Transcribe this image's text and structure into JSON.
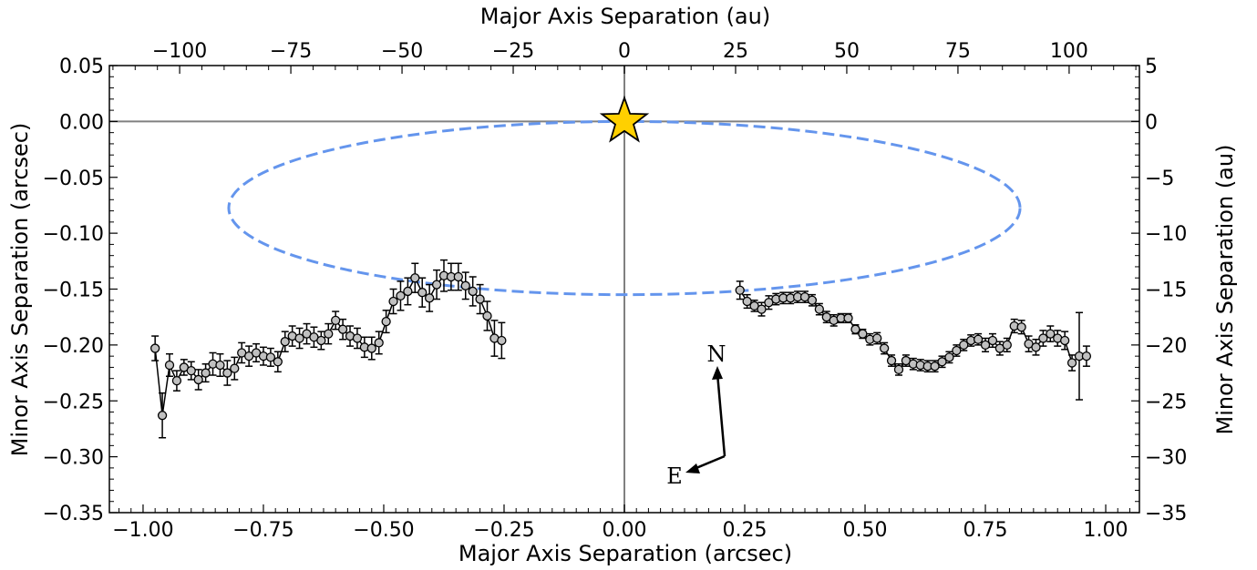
{
  "chart_data": {
    "type": "scatter",
    "title": "",
    "xlabel": "Major Axis Separation (arcsec)",
    "ylabel": "Minor Axis Separation (arcsec)",
    "x2label": "Major Axis Separation (au)",
    "y2label": "Minor Axis Separation (au)",
    "xlim": [
      -1.07,
      1.07
    ],
    "ylim": [
      -0.35,
      0.05
    ],
    "x2lim": [
      -115.8,
      115.8
    ],
    "y2lim": [
      -35.0,
      5.0
    ],
    "x_ticks": [
      -1.0,
      -0.75,
      -0.5,
      -0.25,
      0.0,
      0.25,
      0.5,
      0.75,
      1.0
    ],
    "x_tick_labels": [
      "−1.00",
      "−0.75",
      "−0.50",
      "−0.25",
      "0.00",
      "0.25",
      "0.50",
      "0.75",
      "1.00"
    ],
    "y_ticks": [
      0.05,
      0.0,
      -0.05,
      -0.1,
      -0.15,
      -0.2,
      -0.25,
      -0.3,
      -0.35
    ],
    "y_tick_labels": [
      "0.05",
      "0.00",
      "−0.05",
      "−0.10",
      "−0.15",
      "−0.20",
      "−0.25",
      "−0.30",
      "−0.35"
    ],
    "x2_ticks": [
      -100,
      -75,
      -50,
      -25,
      0,
      25,
      50,
      75,
      100
    ],
    "x2_tick_labels": [
      "−100",
      "−75",
      "−50",
      "−25",
      "0",
      "25",
      "50",
      "75",
      "100"
    ],
    "y2_ticks": [
      5,
      0,
      -5,
      -10,
      -15,
      -20,
      -25,
      -30,
      -35
    ],
    "y2_tick_labels": [
      "5",
      "0",
      "−5",
      "−10",
      "−15",
      "−20",
      "−25",
      "−30",
      "−35"
    ],
    "star": {
      "x": 0.0,
      "y": 0.0,
      "color": "#FFD000"
    },
    "ellipse": {
      "cx": 0.0,
      "cy": -0.0775,
      "rx": 0.822,
      "ry": 0.0775,
      "color": "#6495ED",
      "style": "dashed"
    },
    "reference_lines": {
      "x": 0.0,
      "y": 0.0,
      "color": "#808080"
    },
    "compass": {
      "north_label": "N",
      "east_label": "E"
    },
    "marker_color": "#C0C0C0",
    "series": [
      {
        "x": [
          -0.975,
          -0.96,
          -0.945,
          -0.93,
          -0.915,
          -0.9,
          -0.885,
          -0.87,
          -0.855,
          -0.84,
          -0.825,
          -0.81,
          -0.795,
          -0.78,
          -0.765,
          -0.75,
          -0.735,
          -0.72,
          -0.705,
          -0.69,
          -0.675,
          -0.66,
          -0.645,
          -0.63,
          -0.615,
          -0.6,
          -0.585,
          -0.57,
          -0.555,
          -0.54,
          -0.525,
          -0.51,
          -0.495,
          -0.48,
          -0.465,
          -0.45,
          -0.435,
          -0.42,
          -0.405,
          -0.39,
          -0.375,
          -0.36,
          -0.345,
          -0.33,
          -0.315,
          -0.3,
          -0.285,
          -0.27,
          -0.255
        ],
        "y": [
          -0.203,
          -0.263,
          -0.218,
          -0.232,
          -0.22,
          -0.223,
          -0.231,
          -0.225,
          -0.217,
          -0.218,
          -0.225,
          -0.221,
          -0.207,
          -0.21,
          -0.207,
          -0.21,
          -0.211,
          -0.215,
          -0.197,
          -0.192,
          -0.194,
          -0.19,
          -0.193,
          -0.196,
          -0.19,
          -0.178,
          -0.186,
          -0.192,
          -0.194,
          -0.202,
          -0.203,
          -0.198,
          -0.179,
          -0.161,
          -0.156,
          -0.152,
          -0.14,
          -0.153,
          -0.158,
          -0.146,
          -0.138,
          -0.139,
          -0.139,
          -0.147,
          -0.152,
          -0.159,
          -0.174,
          -0.194,
          -0.196
        ],
        "err": [
          0.011,
          0.02,
          0.01,
          0.009,
          0.007,
          0.008,
          0.009,
          0.008,
          0.01,
          0.01,
          0.011,
          0.01,
          0.009,
          0.009,
          0.008,
          0.008,
          0.008,
          0.009,
          0.009,
          0.009,
          0.009,
          0.009,
          0.009,
          0.008,
          0.009,
          0.008,
          0.009,
          0.009,
          0.009,
          0.009,
          0.01,
          0.01,
          0.01,
          0.011,
          0.013,
          0.012,
          0.013,
          0.013,
          0.012,
          0.013,
          0.014,
          0.012,
          0.012,
          0.012,
          0.013,
          0.013,
          0.013,
          0.016,
          0.016
        ]
      },
      {
        "x": [
          0.24,
          0.255,
          0.27,
          0.285,
          0.3,
          0.315,
          0.33,
          0.345,
          0.36,
          0.375,
          0.39,
          0.405,
          0.42,
          0.435,
          0.45,
          0.465,
          0.48,
          0.495,
          0.51,
          0.525,
          0.54,
          0.555,
          0.57,
          0.585,
          0.6,
          0.615,
          0.63,
          0.645,
          0.66,
          0.675,
          0.69,
          0.705,
          0.72,
          0.735,
          0.75,
          0.765,
          0.78,
          0.795,
          0.81,
          0.825,
          0.84,
          0.855,
          0.87,
          0.885,
          0.9,
          0.915,
          0.93,
          0.945,
          0.96
        ],
        "y": [
          -0.151,
          -0.161,
          -0.165,
          -0.168,
          -0.162,
          -0.159,
          -0.158,
          -0.158,
          -0.157,
          -0.157,
          -0.16,
          -0.168,
          -0.175,
          -0.178,
          -0.176,
          -0.176,
          -0.186,
          -0.19,
          -0.195,
          -0.194,
          -0.203,
          -0.214,
          -0.222,
          -0.214,
          -0.217,
          -0.218,
          -0.219,
          -0.219,
          -0.215,
          -0.211,
          -0.205,
          -0.2,
          -0.196,
          -0.195,
          -0.2,
          -0.196,
          -0.203,
          -0.2,
          -0.183,
          -0.184,
          -0.199,
          -0.202,
          -0.194,
          -0.19,
          -0.194,
          -0.196,
          -0.216,
          -0.21,
          -0.21
        ],
        "err": [
          0.008,
          0.006,
          0.005,
          0.006,
          0.006,
          0.005,
          0.005,
          0.005,
          0.005,
          0.005,
          0.005,
          0.005,
          0.005,
          0.005,
          0.004,
          0.004,
          0.004,
          0.004,
          0.005,
          0.005,
          0.005,
          0.005,
          0.005,
          0.005,
          0.005,
          0.005,
          0.005,
          0.005,
          0.005,
          0.005,
          0.005,
          0.005,
          0.005,
          0.005,
          0.006,
          0.006,
          0.006,
          0.006,
          0.006,
          0.006,
          0.007,
          0.007,
          0.007,
          0.007,
          0.007,
          0.008,
          0.007,
          0.039,
          0.009
        ]
      }
    ]
  }
}
